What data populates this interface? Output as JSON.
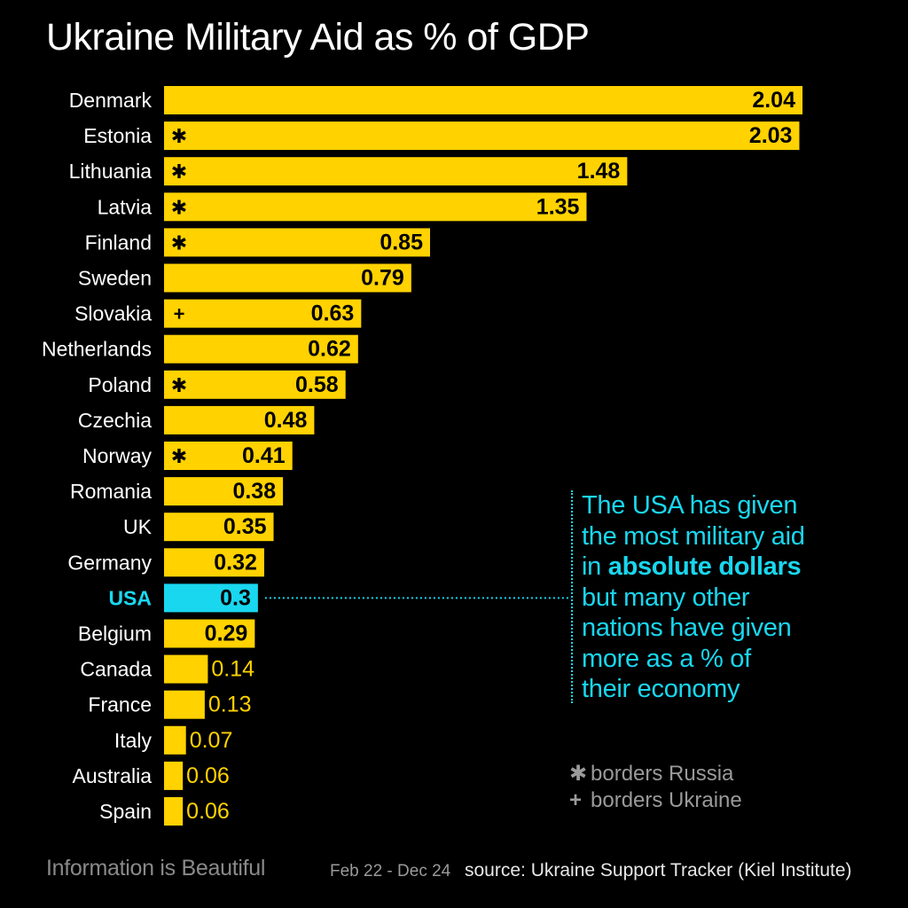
{
  "title": "Ukraine Military Aid as % of GDP",
  "colors": {
    "bar": "#ffd200",
    "highlight": "#19d7ef",
    "label": "#ffffff",
    "value_inside": "#000000",
    "value_outside": "#ffd200",
    "background": "#000000"
  },
  "chart_data": {
    "type": "bar",
    "orientation": "horizontal",
    "title": "Ukraine Military Aid as % of GDP",
    "xlabel": "",
    "ylabel": "",
    "xlim": [
      0,
      2.04
    ],
    "grid": false,
    "categories": [
      "Denmark",
      "Estonia",
      "Lithuania",
      "Latvia",
      "Finland",
      "Sweden",
      "Slovakia",
      "Netherlands",
      "Poland",
      "Czechia",
      "Norway",
      "Romania",
      "UK",
      "Germany",
      "USA",
      "Belgium",
      "Canada",
      "France",
      "Italy",
      "Australia",
      "Spain"
    ],
    "values": [
      2.04,
      2.03,
      1.48,
      1.35,
      0.85,
      0.79,
      0.63,
      0.62,
      0.58,
      0.48,
      0.41,
      0.38,
      0.35,
      0.32,
      0.3,
      0.29,
      0.14,
      0.13,
      0.07,
      0.06,
      0.06
    ],
    "value_labels": [
      "2.04",
      "2.03",
      "1.48",
      "1.35",
      "0.85",
      "0.79",
      "0.63",
      "0.62",
      "0.58",
      "0.48",
      "0.41",
      "0.38",
      "0.35",
      "0.32",
      "0.3",
      "0.29",
      "0.14",
      "0.13",
      "0.07",
      "0.06",
      "0.06"
    ],
    "markers": [
      "",
      "✱",
      "✱",
      "✱",
      "✱",
      "",
      "+",
      "",
      "✱",
      "",
      "✱",
      "",
      "",
      "",
      "",
      "",
      "",
      "",
      "",
      "",
      ""
    ],
    "highlight": "USA"
  },
  "annotation": {
    "lines": [
      {
        "pre": "The USA has given",
        "bold": ""
      },
      {
        "pre": "the most military aid",
        "bold": ""
      },
      {
        "pre": "in ",
        "bold": "absolute dollars"
      },
      {
        "pre": "but many other",
        "bold": ""
      },
      {
        "pre": "nations have given",
        "bold": ""
      },
      {
        "pre": "more as a % of",
        "bold": ""
      },
      {
        "pre": "their economy",
        "bold": ""
      }
    ]
  },
  "legend": [
    {
      "symbol": "✱",
      "text": "borders Russia"
    },
    {
      "symbol": "+",
      "text": "borders Ukraine"
    }
  ],
  "footer": {
    "brand": "Information is Beautiful",
    "date_range": "Feb 22 - Dec 24",
    "source": "source: Ukraine Support Tracker (Kiel Institute)"
  }
}
